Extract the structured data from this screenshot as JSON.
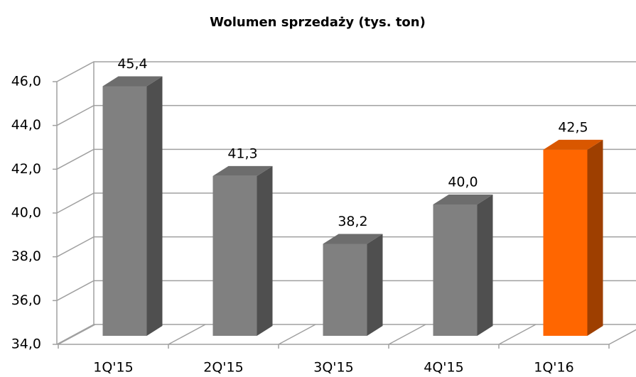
{
  "chart_data": {
    "type": "bar3d",
    "title": "Wolumen sprzedaży (tys. ton)",
    "categories": [
      "1Q'15",
      "2Q'15",
      "3Q'15",
      "4Q'15",
      "1Q'16"
    ],
    "values": [
      45.4,
      41.3,
      38.2,
      40.0,
      42.5
    ],
    "value_labels": [
      "45,4",
      "41,3",
      "38,2",
      "40,0",
      "42,5"
    ],
    "colors": [
      "#808080",
      "#808080",
      "#808080",
      "#808080",
      "#ff6600"
    ],
    "ylim": [
      34,
      46
    ],
    "yticks": [
      {
        "value": 34,
        "label": "34,0"
      },
      {
        "value": 36,
        "label": "36,0"
      },
      {
        "value": 38,
        "label": "38,0"
      },
      {
        "value": 40,
        "label": "40,0"
      },
      {
        "value": 42,
        "label": "42,0"
      },
      {
        "value": 44,
        "label": "44,0"
      },
      {
        "value": 46,
        "label": "46,0"
      }
    ],
    "grid": true
  }
}
